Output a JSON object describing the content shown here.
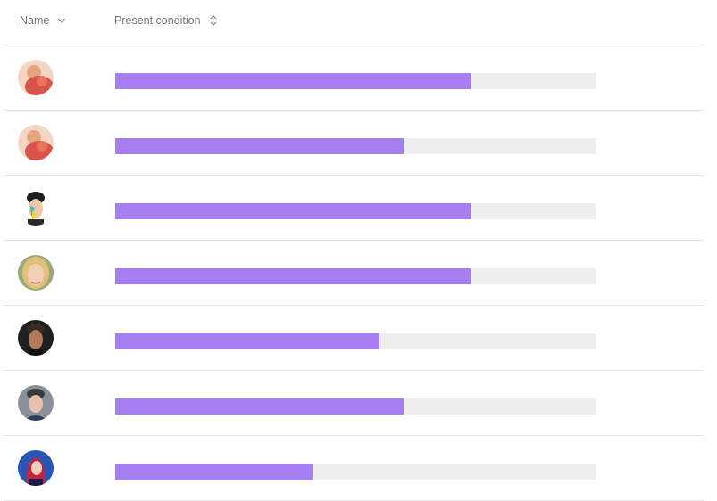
{
  "table": {
    "columns": {
      "name": {
        "label": "Name",
        "icon": "chevron-down-icon"
      },
      "condition": {
        "label": "Present condition",
        "icon": "sort-icon"
      }
    },
    "bar_colors": {
      "fill": "#a77ef2",
      "track": "#eeeeee"
    },
    "rows": [
      {
        "avatar": "avatar-icon",
        "condition": 0.74
      },
      {
        "avatar": "avatar-icon",
        "condition": 0.6
      },
      {
        "avatar": "avatar-icon",
        "condition": 0.74
      },
      {
        "avatar": "avatar-icon",
        "condition": 0.74
      },
      {
        "avatar": "avatar-icon",
        "condition": 0.55
      },
      {
        "avatar": "avatar-icon",
        "condition": 0.6
      },
      {
        "avatar": "avatar-icon",
        "condition": 0.41
      }
    ]
  }
}
